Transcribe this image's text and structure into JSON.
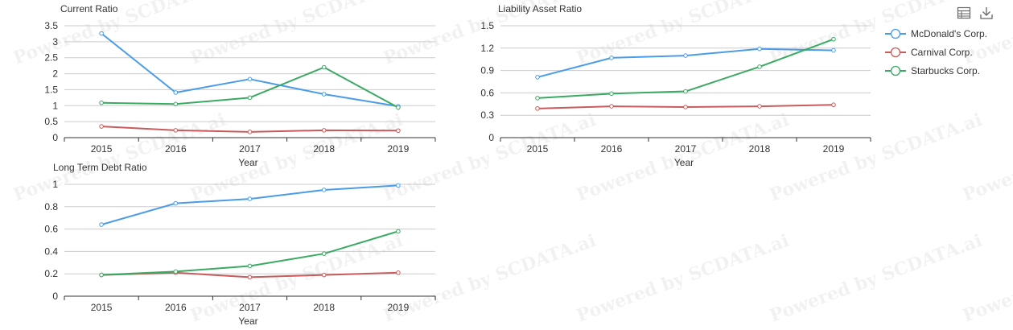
{
  "colors": {
    "mcdonalds": "#4a9ce8",
    "carnival": "#c85b5b",
    "starbucks": "#3aaa63"
  },
  "watermark": "Powered by SCDATA.ai",
  "legend": [
    {
      "name": "McDonald's Corp.",
      "color": "#4a9ce8"
    },
    {
      "name": "Carnival Corp.",
      "color": "#c85b5b"
    },
    {
      "name": "Starbucks Corp.",
      "color": "#3aaa63"
    }
  ],
  "toolbox": {
    "data_view_icon": "table-icon",
    "save_icon": "download-icon"
  },
  "chart_data": [
    {
      "type": "line",
      "title": "Current Ratio",
      "xlabel": "Year",
      "ylabel": "",
      "categories": [
        "2015",
        "2016",
        "2017",
        "2018",
        "2019"
      ],
      "yticks": [
        "0",
        "0.5",
        "1",
        "1.5",
        "2",
        "2.5",
        "3",
        "3.5"
      ],
      "ylim": [
        0,
        3.5
      ],
      "series": [
        {
          "name": "McDonald's Corp.",
          "color": "#4a9ce8",
          "values": [
            3.26,
            1.41,
            1.83,
            1.36,
            0.98
          ]
        },
        {
          "name": "Carnival Corp.",
          "color": "#c85b5b",
          "values": [
            0.35,
            0.23,
            0.18,
            0.23,
            0.22
          ]
        },
        {
          "name": "Starbucks Corp.",
          "color": "#3aaa63",
          "values": [
            1.09,
            1.05,
            1.25,
            2.2,
            0.94
          ]
        }
      ]
    },
    {
      "type": "line",
      "title": "Liability Asset Ratio",
      "xlabel": "Year",
      "ylabel": "",
      "categories": [
        "2015",
        "2016",
        "2017",
        "2018",
        "2019"
      ],
      "yticks": [
        "0",
        "0.3",
        "0.6",
        "0.9",
        "1.2",
        "1.5"
      ],
      "ylim": [
        0,
        1.5
      ],
      "series": [
        {
          "name": "McDonald's Corp.",
          "color": "#4a9ce8",
          "values": [
            0.81,
            1.07,
            1.1,
            1.19,
            1.17
          ]
        },
        {
          "name": "Carnival Corp.",
          "color": "#c85b5b",
          "values": [
            0.39,
            0.42,
            0.41,
            0.42,
            0.44
          ]
        },
        {
          "name": "Starbucks Corp.",
          "color": "#3aaa63",
          "values": [
            0.53,
            0.59,
            0.62,
            0.95,
            1.32
          ]
        }
      ]
    },
    {
      "type": "line",
      "title": "Long Term Debt Ratio",
      "xlabel": "Year",
      "ylabel": "",
      "categories": [
        "2015",
        "2016",
        "2017",
        "2018",
        "2019"
      ],
      "yticks": [
        "0",
        "0.2",
        "0.4",
        "0.6",
        "0.8",
        "1"
      ],
      "ylim": [
        0,
        1
      ],
      "series": [
        {
          "name": "McDonald's Corp.",
          "color": "#4a9ce8",
          "values": [
            0.64,
            0.83,
            0.87,
            0.95,
            0.99
          ]
        },
        {
          "name": "Carnival Corp.",
          "color": "#c85b5b",
          "values": [
            0.19,
            0.21,
            0.17,
            0.19,
            0.21
          ]
        },
        {
          "name": "Starbucks Corp.",
          "color": "#3aaa63",
          "values": [
            0.19,
            0.22,
            0.27,
            0.38,
            0.58
          ]
        }
      ]
    }
  ]
}
